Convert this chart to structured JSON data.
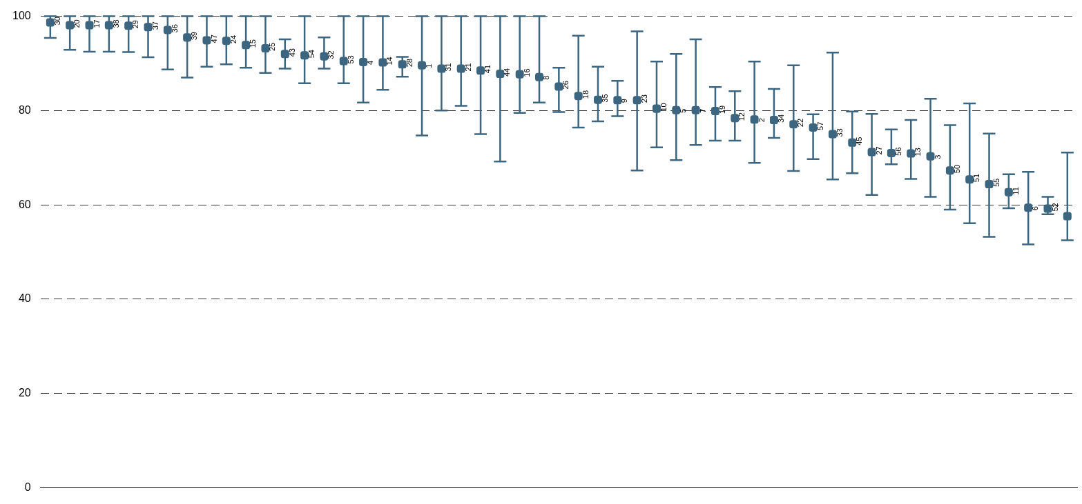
{
  "chart_data": {
    "type": "scatter",
    "categories": [
      "30",
      "20",
      "17",
      "38",
      "29",
      "37",
      "36",
      "39",
      "47",
      "24",
      "15",
      "25",
      "43",
      "54",
      "32",
      "53",
      "4",
      "14",
      "28",
      "1",
      "31",
      "21",
      "41",
      "44",
      "16",
      "8",
      "26",
      "18",
      "35",
      "9",
      "23",
      "10",
      "5",
      "7",
      "19",
      "12",
      "2",
      "34",
      "22",
      "57",
      "33",
      "45",
      "27",
      "56",
      "13",
      "3",
      "50",
      "51",
      "55",
      "11",
      "6",
      "52",
      null
    ],
    "series": [
      {
        "color": "#3c6580",
        "values": [
          98.7,
          98.1,
          98.1,
          98.1,
          98.0,
          97.7,
          97.1,
          95.5,
          94.9,
          94.8,
          93.9,
          93.2,
          92.0,
          91.7,
          91.5,
          90.5,
          90.3,
          90.2,
          89.8,
          89.6,
          88.9,
          88.9,
          88.5,
          87.8,
          87.7,
          87.1,
          85.1,
          83.1,
          82.3,
          82.2,
          82.2,
          80.4,
          80.1,
          80.1,
          79.9,
          78.4,
          78.1,
          78.0,
          77.1,
          76.4,
          75.0,
          73.2,
          71.2,
          71.0,
          70.9,
          70.3,
          67.3,
          65.4,
          64.4,
          62.7,
          59.4,
          59.2,
          57.6
        ],
        "errors": [
          [
            95.4,
            100
          ],
          [
            92.9,
            100
          ],
          [
            92.5,
            100
          ],
          [
            92.5,
            100
          ],
          [
            92.4,
            100
          ],
          [
            91.3,
            100
          ],
          [
            88.7,
            100
          ],
          [
            87.0,
            100
          ],
          [
            89.3,
            100
          ],
          [
            89.8,
            100
          ],
          [
            89.1,
            100
          ],
          [
            88.0,
            100
          ],
          [
            88.9,
            95.1
          ],
          [
            85.8,
            100
          ],
          [
            88.9,
            95.5
          ],
          [
            85.8,
            100
          ],
          [
            81.7,
            100
          ],
          [
            84.4,
            100
          ],
          [
            87.2,
            91.4
          ],
          [
            74.7,
            100
          ],
          [
            80.0,
            100
          ],
          [
            81.0,
            100
          ],
          [
            75.0,
            100
          ],
          [
            69.2,
            100
          ],
          [
            79.5,
            100
          ],
          [
            81.7,
            100
          ],
          [
            79.7,
            89.1
          ],
          [
            76.4,
            95.9
          ],
          [
            77.7,
            89.3
          ],
          [
            78.8,
            86.3
          ],
          [
            67.3,
            96.8
          ],
          [
            72.2,
            90.4
          ],
          [
            69.5,
            92.0
          ],
          [
            72.7,
            95.1
          ],
          [
            73.6,
            85.0
          ],
          [
            73.6,
            84.1
          ],
          [
            68.9,
            90.4
          ],
          [
            74.2,
            84.6
          ],
          [
            67.2,
            89.6
          ],
          [
            69.7,
            79.2
          ],
          [
            65.4,
            92.3
          ],
          [
            66.7,
            79.8
          ],
          [
            62.1,
            79.3
          ],
          [
            68.6,
            76.0
          ],
          [
            65.5,
            78.0
          ],
          [
            61.7,
            82.5
          ],
          [
            59.0,
            76.9
          ],
          [
            56.1,
            81.5
          ],
          [
            53.2,
            75.1
          ],
          [
            59.3,
            66.5
          ],
          [
            51.6,
            67.0
          ],
          [
            58.0,
            61.7
          ],
          [
            52.5,
            71.1
          ]
        ]
      }
    ],
    "ylim": [
      0,
      100
    ],
    "yticks": [
      0,
      20,
      40,
      60,
      80,
      100
    ],
    "grid": "y",
    "legend": false,
    "tick_labels": "y",
    "marker": "square"
  }
}
